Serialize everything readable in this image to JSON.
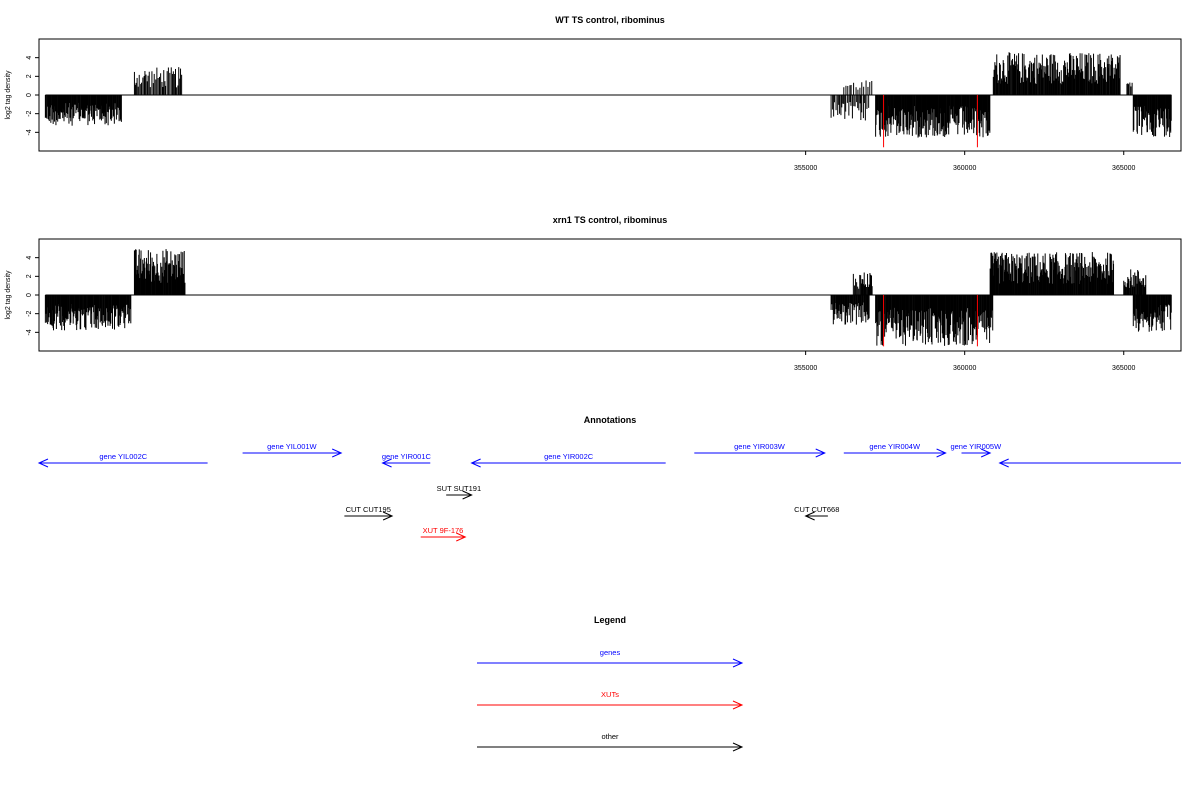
{
  "chart_data": [
    {
      "type": "bar",
      "title": "WT TS control, ribominus",
      "ylabel": "log2 tag density",
      "xlim": [
        330900,
        366800
      ],
      "ylim": [
        -6,
        6
      ],
      "yticks": [
        4,
        2,
        0,
        -2,
        -4
      ],
      "xticks": [
        355000,
        360000,
        365000
      ],
      "xtick_labels": [
        "355000",
        "360000",
        "365000"
      ],
      "highlight_color": "#ff0000",
      "bar_color": "#000000",
      "highlight_x": [
        357450,
        360400
      ],
      "highlight_values": [
        -5.6,
        -5.6
      ],
      "segments": [
        {
          "start": 331100,
          "end": 333500,
          "sign": -1,
          "max": 3.3,
          "density": 1.0
        },
        {
          "start": 333900,
          "end": 335400,
          "sign": 1,
          "max": 3.0,
          "density": 0.5
        },
        {
          "start": 355800,
          "end": 357000,
          "sign": -1,
          "max": 2.9,
          "density": 0.45
        },
        {
          "start": 356200,
          "end": 357100,
          "sign": 1,
          "max": 1.6,
          "density": 0.3
        },
        {
          "start": 357200,
          "end": 360800,
          "sign": -1,
          "max": 4.6,
          "density": 1.0
        },
        {
          "start": 360900,
          "end": 364900,
          "sign": 1,
          "max": 4.6,
          "density": 0.85
        },
        {
          "start": 365300,
          "end": 366500,
          "sign": -1,
          "max": 4.5,
          "density": 1.0
        },
        {
          "start": 365100,
          "end": 365300,
          "sign": 1,
          "max": 1.5,
          "density": 0.5
        }
      ]
    },
    {
      "type": "bar",
      "title": "xrn1 TS control, ribominus",
      "ylabel": "log2 tag density",
      "xlim": [
        330900,
        366800
      ],
      "ylim": [
        -6,
        6
      ],
      "yticks": [
        4,
        2,
        0,
        -2,
        -4
      ],
      "xticks": [
        355000,
        360000,
        365000
      ],
      "xtick_labels": [
        "355000",
        "360000",
        "365000"
      ],
      "highlight_color": "#ff0000",
      "bar_color": "#000000",
      "highlight_x": [
        357450,
        360400
      ],
      "highlight_values": [
        -5.5,
        -5.5
      ],
      "segments": [
        {
          "start": 331100,
          "end": 333800,
          "sign": -1,
          "max": 3.8,
          "density": 1.0
        },
        {
          "start": 333900,
          "end": 335500,
          "sign": 1,
          "max": 5.0,
          "density": 1.0
        },
        {
          "start": 355800,
          "end": 357000,
          "sign": -1,
          "max": 3.2,
          "density": 0.9
        },
        {
          "start": 356500,
          "end": 357100,
          "sign": 1,
          "max": 2.6,
          "density": 0.6
        },
        {
          "start": 357200,
          "end": 360900,
          "sign": -1,
          "max": 5.5,
          "density": 1.0
        },
        {
          "start": 360800,
          "end": 364700,
          "sign": 1,
          "max": 4.6,
          "density": 1.0
        },
        {
          "start": 365000,
          "end": 365700,
          "sign": 1,
          "max": 2.8,
          "density": 0.9
        },
        {
          "start": 365300,
          "end": 366500,
          "sign": -1,
          "max": 4.0,
          "density": 1.0
        }
      ]
    },
    {
      "type": "annotation-track",
      "title": "Annotations",
      "xlim": [
        330900,
        366800
      ],
      "colors": {
        "gene": "#0000ff",
        "xut": "#ff0000",
        "other": "#000000"
      },
      "features": [
        {
          "label": "gene YIL002C",
          "start": 330900,
          "end": 336200,
          "strand": "-",
          "kind": "gene",
          "row": 1
        },
        {
          "label": "gene YIL001W",
          "start": 337300,
          "end": 340400,
          "strand": "+",
          "kind": "gene",
          "row": 0
        },
        {
          "label": "gene YIR001C",
          "start": 341700,
          "end": 343200,
          "strand": "-",
          "kind": "gene",
          "row": 1
        },
        {
          "label": "gene YIR002C",
          "start": 344500,
          "end": 350600,
          "strand": "-",
          "kind": "gene",
          "row": 1
        },
        {
          "label": "gene YIR003W",
          "start": 351500,
          "end": 355600,
          "strand": "+",
          "kind": "gene",
          "row": 0
        },
        {
          "label": "gene YIR004W",
          "start": 356200,
          "end": 359400,
          "strand": "+",
          "kind": "gene",
          "row": 0
        },
        {
          "label": "gene YIR005W",
          "start": 359900,
          "end": 360800,
          "strand": "+",
          "kind": "gene",
          "row": 0
        },
        {
          "label": "",
          "start": 361100,
          "end": 366800,
          "strand": "-",
          "kind": "gene",
          "row": 1
        },
        {
          "label": "SUT SUT191",
          "start": 343700,
          "end": 344500,
          "strand": "+",
          "kind": "other",
          "row": 2
        },
        {
          "label": "CUT CUT195",
          "start": 340500,
          "end": 342000,
          "strand": "+",
          "kind": "other",
          "row": 3
        },
        {
          "label": "CUT CUT668",
          "start": 355000,
          "end": 355700,
          "strand": "-",
          "kind": "other",
          "row": 3
        },
        {
          "label": "XUT 9F-176",
          "start": 342900,
          "end": 344300,
          "strand": "+",
          "kind": "xut",
          "row": 4
        }
      ]
    },
    {
      "type": "legend",
      "title": "Legend",
      "items": [
        {
          "label": "genes",
          "color": "#0000ff"
        },
        {
          "label": "XUTs",
          "color": "#ff0000"
        },
        {
          "label": "other",
          "color": "#000000"
        }
      ]
    }
  ]
}
